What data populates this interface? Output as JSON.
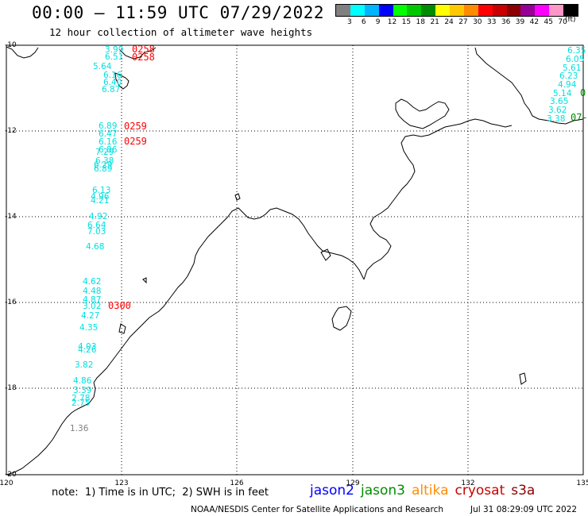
{
  "header": {
    "title": "00:00 – 11:59 UTC 07/29/2022",
    "subtitle": "12 hour collection of altimeter wave heights"
  },
  "legend": {
    "colors": [
      "#808080",
      "#00ffff",
      "#00b4ff",
      "#0000ff",
      "#00ff00",
      "#00c800",
      "#008c00",
      "#ffff00",
      "#ffc800",
      "#ff8c00",
      "#ff0000",
      "#c80000",
      "#8c0000",
      "#960096",
      "#ff00ff",
      "#ff96c8",
      "#000000"
    ],
    "labels": [
      "3",
      "6",
      "9",
      "12",
      "15",
      "18",
      "21",
      "24",
      "27",
      "30",
      "33",
      "36",
      "39",
      "42",
      "45",
      "70"
    ],
    "unit": "(ft)"
  },
  "axes": {
    "lon_labels": [
      "120",
      "123",
      "126",
      "129",
      "132",
      "135"
    ],
    "lat_labels": [
      "-10",
      "-12",
      "-14",
      "-16",
      "-18",
      "-20"
    ]
  },
  "track1": [
    {
      "v": "3.99",
      "c": "#00e0e0"
    },
    {
      "v": "6.51",
      "c": "#00e0e0"
    },
    {
      "v": "5.64",
      "c": "#00e0e0"
    },
    {
      "v": "6.16",
      "c": "#00e0e0"
    },
    {
      "v": "6.40",
      "c": "#00e0e0"
    },
    {
      "v": "6.87",
      "c": "#00e0e0"
    },
    {
      "v": "6.89",
      "c": "#00e0e0"
    },
    {
      "v": "6.47",
      "c": "#00e0e0"
    },
    {
      "v": "6.16",
      "c": "#00e0e0"
    },
    {
      "v": "6.86",
      "c": "#00e0e0"
    },
    {
      "v": "7.29",
      "c": "#00e0e0"
    },
    {
      "v": "6.38",
      "c": "#00e0e0"
    },
    {
      "v": "6.29",
      "c": "#00e0e0"
    },
    {
      "v": "6.89",
      "c": "#00e0e0"
    },
    {
      "v": "6.13",
      "c": "#00e0e0"
    },
    {
      "v": "4.96",
      "c": "#00e0e0"
    },
    {
      "v": "4.21",
      "c": "#00e0e0"
    },
    {
      "v": "4.92",
      "c": "#00e0e0"
    },
    {
      "v": "6.64",
      "c": "#00e0e0"
    },
    {
      "v": "7.03",
      "c": "#00e0e0"
    },
    {
      "v": "4.68",
      "c": "#00e0e0"
    },
    {
      "v": "4.62",
      "c": "#00e0e0"
    },
    {
      "v": "4.48",
      "c": "#00e0e0"
    },
    {
      "v": "4.87",
      "c": "#00e0e0"
    },
    {
      "v": "3.02",
      "c": "#00e0e0"
    },
    {
      "v": "4.27",
      "c": "#00e0e0"
    },
    {
      "v": "4.35",
      "c": "#00e0e0"
    },
    {
      "v": "4.03",
      "c": "#00e0e0"
    },
    {
      "v": "4.26",
      "c": "#00e0e0"
    },
    {
      "v": "3.82",
      "c": "#00e0e0"
    },
    {
      "v": "4.86",
      "c": "#00e0e0"
    },
    {
      "v": "3.39",
      "c": "#00e0e0"
    },
    {
      "v": "2.78",
      "c": "#00e0e0"
    },
    {
      "v": "2.75",
      "c": "#00e0e0"
    },
    {
      "v": "1.36",
      "c": "#808080"
    }
  ],
  "track2": [
    {
      "v": "6.35",
      "c": "#00e0e0"
    },
    {
      "v": "6.05",
      "c": "#00e0e0"
    },
    {
      "v": "5.61",
      "c": "#00e0e0"
    },
    {
      "v": "6.23",
      "c": "#00e0e0"
    },
    {
      "v": "4.94",
      "c": "#00e0e0"
    },
    {
      "v": "5.14",
      "c": "#00e0e0"
    },
    {
      "v": "3.65",
      "c": "#00e0e0"
    },
    {
      "v": "3.62",
      "c": "#00e0e0"
    },
    {
      "v": "3.38",
      "c": "#00e0e0"
    }
  ],
  "time_stamps": [
    {
      "t": "0258",
      "c": "#ff0000"
    },
    {
      "t": "0258",
      "c": "#ff0000"
    },
    {
      "t": "0259",
      "c": "#ff0000"
    },
    {
      "t": "0259",
      "c": "#ff0000"
    },
    {
      "t": "0300",
      "c": "#ff0000"
    },
    {
      "t": "0",
      "c": "#008c00"
    },
    {
      "t": "07-",
      "c": "#008c00"
    }
  ],
  "footer": {
    "note": "note:  1) Time is in UTC;  2) SWH is in feet",
    "missions": [
      {
        "name": "jason2",
        "color": "#0000ff"
      },
      {
        "name": "jason3",
        "color": "#008c00"
      },
      {
        "name": "altika",
        "color": "#ff8c00"
      },
      {
        "name": "cryosat",
        "color": "#c80000"
      },
      {
        "name": "s3a",
        "color": "#8c0000"
      }
    ],
    "credit": "NOAA/NESDIS Center for Satellite Applications and Research",
    "timestamp": "Jul 31 08:29:09 UTC 2022"
  }
}
